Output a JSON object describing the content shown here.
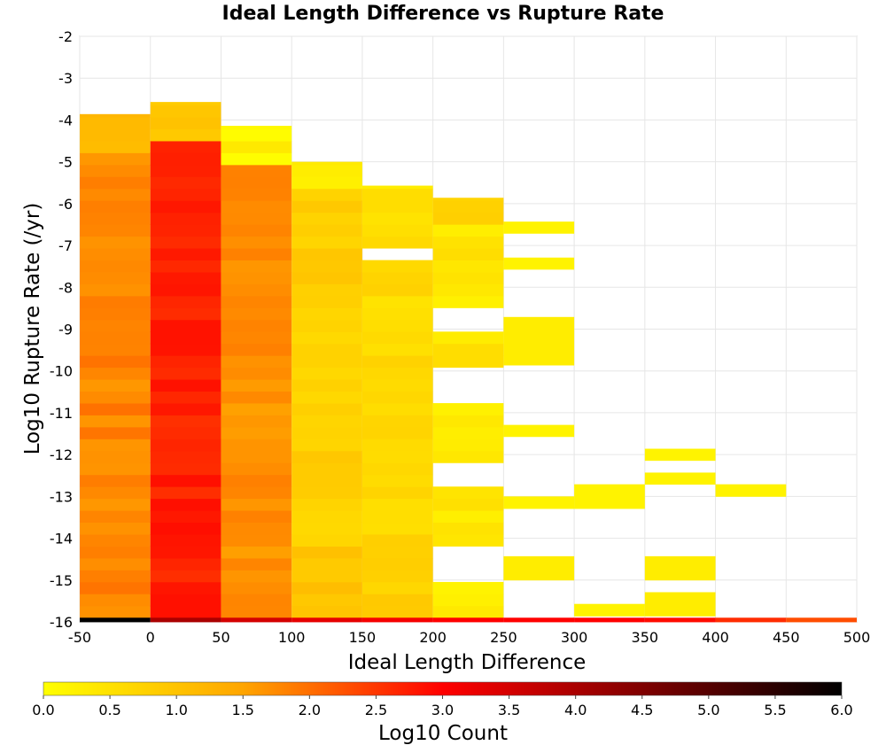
{
  "chart_data": {
    "type": "heatmap",
    "title": "Ideal Length Difference vs Rupture Rate",
    "xlabel": "Ideal Length Difference",
    "ylabel": "Log10 Rupture Rate (/yr)",
    "xlim": [
      -50,
      500
    ],
    "ylim": [
      -16,
      -2
    ],
    "x_ticks": [
      "-50",
      "0",
      "50",
      "100",
      "150",
      "200",
      "250",
      "300",
      "350",
      "400",
      "450",
      "500"
    ],
    "y_ticks": [
      "-2",
      "-3",
      "-4",
      "-5",
      "-6",
      "-7",
      "-8",
      "-9",
      "-10",
      "-11",
      "-12",
      "-13",
      "-14",
      "-15",
      "-16"
    ],
    "x_bin_width": 50,
    "y_bin_height": 0.285,
    "grid": true,
    "colorbar": {
      "label": "Log10 Count",
      "min": 0,
      "max": 6,
      "ticks": [
        "0.0",
        "0.5",
        "1.0",
        "1.5",
        "2.0",
        "2.5",
        "3.0",
        "3.5",
        "4.0",
        "4.5",
        "5.0",
        "5.5",
        "6.0"
      ],
      "stops": [
        "#ffff00",
        "#ffa500",
        "#ff0000",
        "#000000"
      ]
    },
    "bottom_row": {
      "y": -16,
      "values": [
        6.0,
        4.0,
        3.5,
        3.3,
        3.1,
        3.0,
        3.0,
        3.0,
        2.9,
        2.6,
        2.3
      ]
    },
    "columns": [
      {
        "x": -25,
        "y_range": [
          -15.9,
          -3.86
        ],
        "top_value": 1.2,
        "main_value": 1.8,
        "bottom_value": 1.85
      },
      {
        "x": 25,
        "y_range": [
          -15.9,
          -3.57
        ],
        "top_value": 1.0,
        "main_value": 2.7,
        "bottom_value": 2.75
      },
      {
        "x": 75,
        "y_range": [
          -15.9,
          -4.14
        ],
        "top_value": 0.2,
        "main_value": 1.7,
        "bottom_value": 1.75
      },
      {
        "x": 125,
        "y_range": [
          -15.9,
          -5.0
        ],
        "top_value": 0.2,
        "main_value": 0.8,
        "bottom_value": 1.1
      },
      {
        "x": 175,
        "y_range": [
          -15.9,
          -5.57
        ],
        "top_value": 0.4,
        "main_value": 0.6,
        "bottom_value": 0.8,
        "gaps": [
          [
            -7.3,
            -7.0
          ]
        ]
      },
      {
        "x": 225,
        "y_range": [
          -15.9,
          -5.86
        ],
        "top_value": 0.8,
        "main_value": 0.4,
        "bottom_value": 0.3,
        "gaps": [
          [
            -9.0,
            -8.43
          ],
          [
            -10.71,
            -9.86
          ],
          [
            -12.71,
            -12.14
          ],
          [
            -14.71,
            -14.14
          ],
          [
            -15.0,
            -14.71
          ]
        ]
      }
    ],
    "scattered_cells": [
      {
        "x": 275,
        "y": [
          -6.71,
          -6.43
        ],
        "value": 0.2
      },
      {
        "x": 275,
        "y": [
          -7.57,
          -7.29
        ],
        "value": 0.2
      },
      {
        "x": 275,
        "y": [
          -9.86,
          -8.71
        ],
        "value": 0.3
      },
      {
        "x": 275,
        "y": [
          -11.57,
          -11.29
        ],
        "value": 0.2
      },
      {
        "x": 275,
        "y": [
          -13.29,
          -13.0
        ],
        "value": 0.2
      },
      {
        "x": 275,
        "y": [
          -15.0,
          -14.43
        ],
        "value": 0.3
      },
      {
        "x": 325,
        "y": [
          -13.29,
          -12.71
        ],
        "value": 0.2
      },
      {
        "x": 325,
        "y": [
          -15.86,
          -15.57
        ],
        "value": 0.2
      },
      {
        "x": 375,
        "y": [
          -12.14,
          -11.86
        ],
        "value": 0.2
      },
      {
        "x": 375,
        "y": [
          -12.71,
          -12.43
        ],
        "value": 0.2
      },
      {
        "x": 375,
        "y": [
          -15.0,
          -14.43
        ],
        "value": 0.3
      },
      {
        "x": 375,
        "y": [
          -15.86,
          -15.29
        ],
        "value": 0.3
      },
      {
        "x": 425,
        "y": [
          -13.0,
          -12.71
        ],
        "value": 0.2
      }
    ]
  }
}
